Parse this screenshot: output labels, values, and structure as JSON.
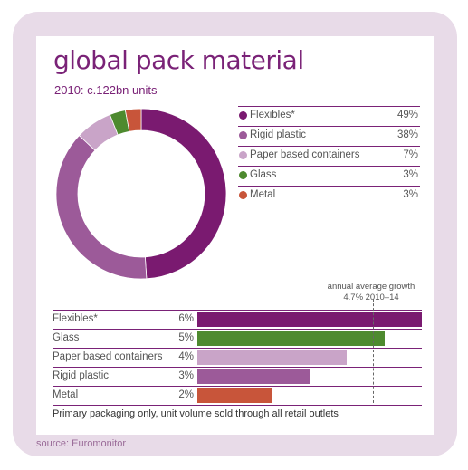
{
  "title": "global pack material",
  "subtitle": "2010: c.122bn units",
  "source": "source: Euromonitor",
  "note": "Primary packaging only, unit volume sold through all retail outlets",
  "chart_data": [
    {
      "type": "pie",
      "subtitle": "2010: c.122bn units",
      "legend_position": "right",
      "categories": [
        "Flexibles*",
        "Rigid plastic",
        "Paper based containers",
        "Glass",
        "Metal"
      ],
      "labels": [
        "49%",
        "38%",
        "7%",
        "3%",
        "3%"
      ],
      "values": [
        49,
        38,
        7,
        3,
        3
      ],
      "colors": [
        "#7a1a70",
        "#9c5a99",
        "#c9a4c8",
        "#4e8a2f",
        "#c8553a"
      ]
    },
    {
      "type": "bar",
      "orientation": "horizontal",
      "categories": [
        "Flexibles*",
        "Glass",
        "Paper based containers",
        "Rigid plastic",
        "Metal"
      ],
      "labels": [
        "6%",
        "5%",
        "4%",
        "3%",
        "2%"
      ],
      "values": [
        6,
        5,
        4,
        3,
        2
      ],
      "colors": [
        "#7a1a70",
        "#4e8a2f",
        "#c9a4c8",
        "#9c5a99",
        "#c8553a"
      ],
      "xlim": [
        0,
        6
      ],
      "reference_line": {
        "value": 4.7,
        "label_line1": "annual average growth",
        "label_line2": "4.7% 2010–14"
      }
    }
  ]
}
